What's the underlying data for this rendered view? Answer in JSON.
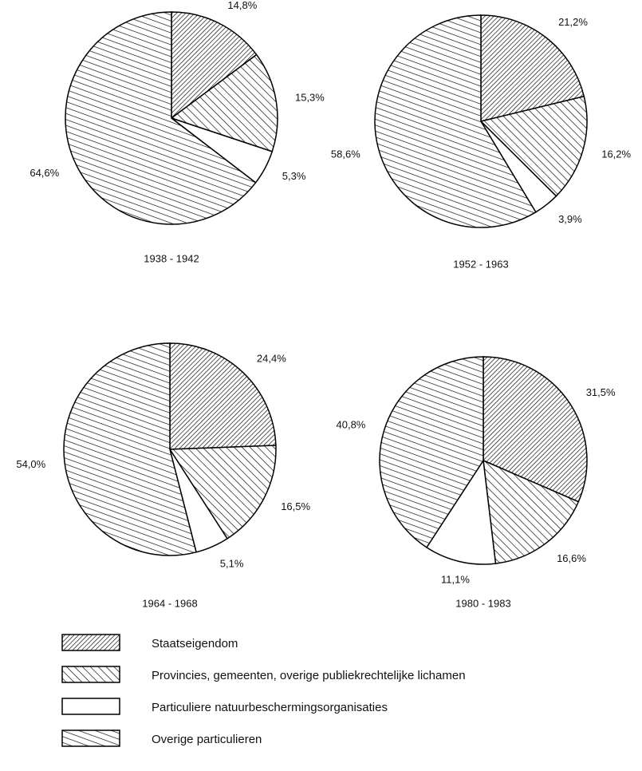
{
  "chart_data": [
    {
      "type": "pie",
      "title": "1938 - 1942",
      "values": [
        14.8,
        15.3,
        5.3,
        64.6
      ],
      "value_labels": [
        "14,8%",
        "15,3%",
        "5,3%",
        "64,6%"
      ]
    },
    {
      "type": "pie",
      "title": "1952 - 1963",
      "values": [
        21.2,
        16.2,
        3.9,
        58.6
      ],
      "value_labels": [
        "21,2%",
        "16,2%",
        "3,9%",
        "58,6%"
      ]
    },
    {
      "type": "pie",
      "title": "1964 - 1968",
      "values": [
        24.4,
        16.5,
        5.1,
        54.0
      ],
      "value_labels": [
        "24,4%",
        "16,5%",
        "5,1%",
        "54,0%"
      ]
    },
    {
      "type": "pie",
      "title": "1980 - 1983",
      "values": [
        31.5,
        16.6,
        11.1,
        40.8
      ],
      "value_labels": [
        "31,5%",
        "16,6%",
        "11,1%",
        "40,8%"
      ]
    }
  ],
  "legend": {
    "items": [
      {
        "name": "Staatseigendom",
        "pattern": "dense-diagonal"
      },
      {
        "name": "Provincies, gemeenten, overige publiekrechtelijke lichamen",
        "pattern": "wide-diagonal"
      },
      {
        "name": "Particuliere natuurbeschermingsorganisaties",
        "pattern": "none"
      },
      {
        "name": "Overige particulieren",
        "pattern": "horizontal"
      }
    ]
  }
}
